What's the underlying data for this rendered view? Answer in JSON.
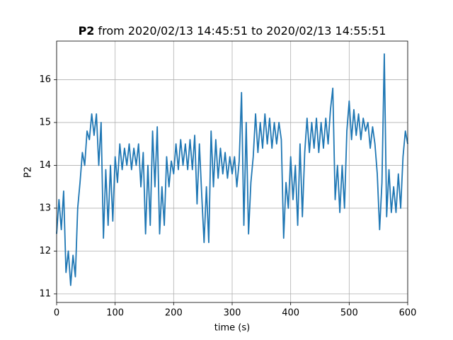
{
  "chart_data": {
    "type": "line",
    "title": [
      "P2",
      "from 2020/02/13 14:45:51 to 2020/02/13 14:55:51"
    ],
    "xlabel": "time (s)",
    "ylabel": "P2",
    "xlim": [
      0,
      600
    ],
    "ylim": [
      10.8,
      16.9
    ],
    "xticks": [
      0,
      100,
      200,
      300,
      400,
      500,
      600
    ],
    "yticks": [
      11,
      12,
      13,
      14,
      15,
      16
    ],
    "grid": true,
    "x": [
      0,
      4,
      8,
      12,
      16,
      20,
      24,
      28,
      32,
      36,
      40,
      44,
      48,
      52,
      56,
      60,
      64,
      68,
      72,
      76,
      80,
      84,
      88,
      92,
      96,
      100,
      104,
      108,
      112,
      116,
      120,
      124,
      128,
      132,
      136,
      140,
      144,
      148,
      152,
      156,
      160,
      164,
      168,
      172,
      176,
      180,
      184,
      188,
      192,
      196,
      200,
      204,
      208,
      212,
      216,
      220,
      224,
      228,
      232,
      236,
      240,
      244,
      248,
      252,
      256,
      260,
      264,
      268,
      272,
      276,
      280,
      284,
      288,
      292,
      296,
      300,
      304,
      308,
      312,
      316,
      320,
      324,
      328,
      332,
      336,
      340,
      344,
      348,
      352,
      356,
      360,
      364,
      368,
      372,
      376,
      380,
      384,
      388,
      392,
      396,
      400,
      404,
      408,
      412,
      416,
      420,
      424,
      428,
      432,
      436,
      440,
      444,
      448,
      452,
      456,
      460,
      464,
      468,
      472,
      476,
      480,
      484,
      488,
      492,
      496,
      500,
      504,
      508,
      512,
      516,
      520,
      524,
      528,
      532,
      536,
      540,
      544,
      548,
      552,
      556,
      560,
      564,
      568,
      572,
      576,
      580,
      584,
      588,
      592,
      596,
      600
    ],
    "series": [
      {
        "name": "P2",
        "color": "#1f77b4",
        "values": [
          12.4,
          13.2,
          12.5,
          13.4,
          11.5,
          12.0,
          11.2,
          11.9,
          11.4,
          13.0,
          13.6,
          14.3,
          14.0,
          14.8,
          14.6,
          15.2,
          14.7,
          15.2,
          14.0,
          15.0,
          12.3,
          13.9,
          12.6,
          14.0,
          12.7,
          14.2,
          13.6,
          14.5,
          13.9,
          14.4,
          14.0,
          14.5,
          13.9,
          14.4,
          14.0,
          14.5,
          13.5,
          14.3,
          12.4,
          14.0,
          12.6,
          14.8,
          13.5,
          14.9,
          12.4,
          13.5,
          12.6,
          14.2,
          13.5,
          14.1,
          13.8,
          14.5,
          13.9,
          14.6,
          14.0,
          14.5,
          13.9,
          14.6,
          13.9,
          14.7,
          13.1,
          14.5,
          13.3,
          12.2,
          13.5,
          12.2,
          14.8,
          13.5,
          14.6,
          13.7,
          14.4,
          13.8,
          14.3,
          13.7,
          14.2,
          13.8,
          14.2,
          13.5,
          14.1,
          15.7,
          12.6,
          15.0,
          12.4,
          13.6,
          14.2,
          15.2,
          14.3,
          15.0,
          14.4,
          15.2,
          14.5,
          15.1,
          14.4,
          15.0,
          14.5,
          15.0,
          14.6,
          12.3,
          13.6,
          13.0,
          14.2,
          13.2,
          14.0,
          12.6,
          14.5,
          12.8,
          14.3,
          15.1,
          14.3,
          15.0,
          14.4,
          15.1,
          14.3,
          15.0,
          14.4,
          15.1,
          14.5,
          15.3,
          15.8,
          13.2,
          14.0,
          12.9,
          14.0,
          13.0,
          14.8,
          15.5,
          14.6,
          15.3,
          14.7,
          15.2,
          14.6,
          15.1,
          14.8,
          15.0,
          14.4,
          14.9,
          14.5,
          13.8,
          12.5,
          13.6,
          16.6,
          12.8,
          13.9,
          12.9,
          13.5,
          12.9,
          13.8,
          13.0,
          14.2,
          14.8,
          14.5
        ]
      }
    ]
  }
}
